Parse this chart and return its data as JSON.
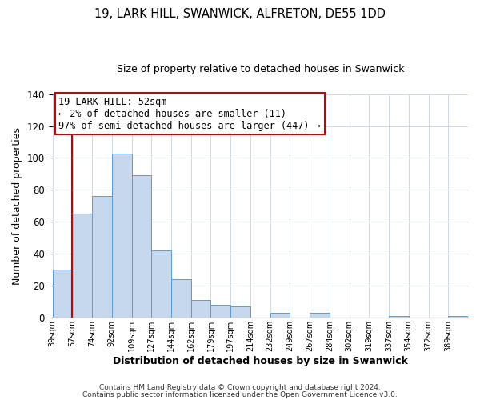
{
  "title": "19, LARK HILL, SWANWICK, ALFRETON, DE55 1DD",
  "subtitle": "Size of property relative to detached houses in Swanwick",
  "xlabel": "Distribution of detached houses by size in Swanwick",
  "ylabel": "Number of detached properties",
  "bar_values": [
    30,
    65,
    76,
    103,
    89,
    42,
    24,
    11,
    8,
    7,
    0,
    3,
    0,
    3,
    0,
    0,
    0,
    1,
    0,
    0,
    1
  ],
  "bin_labels": [
    "39sqm",
    "57sqm",
    "74sqm",
    "92sqm",
    "109sqm",
    "127sqm",
    "144sqm",
    "162sqm",
    "179sqm",
    "197sqm",
    "214sqm",
    "232sqm",
    "249sqm",
    "267sqm",
    "284sqm",
    "302sqm",
    "319sqm",
    "337sqm",
    "354sqm",
    "372sqm",
    "389sqm"
  ],
  "bar_color": "#c5d8ed",
  "bar_edge_color": "#5b9bd5",
  "annotation_box_color": "#ffffff",
  "annotation_box_edge_color": "#cc0000",
  "annotation_line_color": "#cc0000",
  "annotation_text": "19 LARK HILL: 52sqm\n← 2% of detached houses are smaller (11)\n97% of semi-detached houses are larger (447) →",
  "red_line_x": 0.5,
  "ylim": [
    0,
    140
  ],
  "yticks": [
    0,
    20,
    40,
    60,
    80,
    100,
    120,
    140
  ],
  "footer1": "Contains HM Land Registry data © Crown copyright and database right 2024.",
  "footer2": "Contains public sector information licensed under the Open Government Licence v3.0.",
  "background_color": "#ffffff",
  "grid_color": "#d0d8e4"
}
